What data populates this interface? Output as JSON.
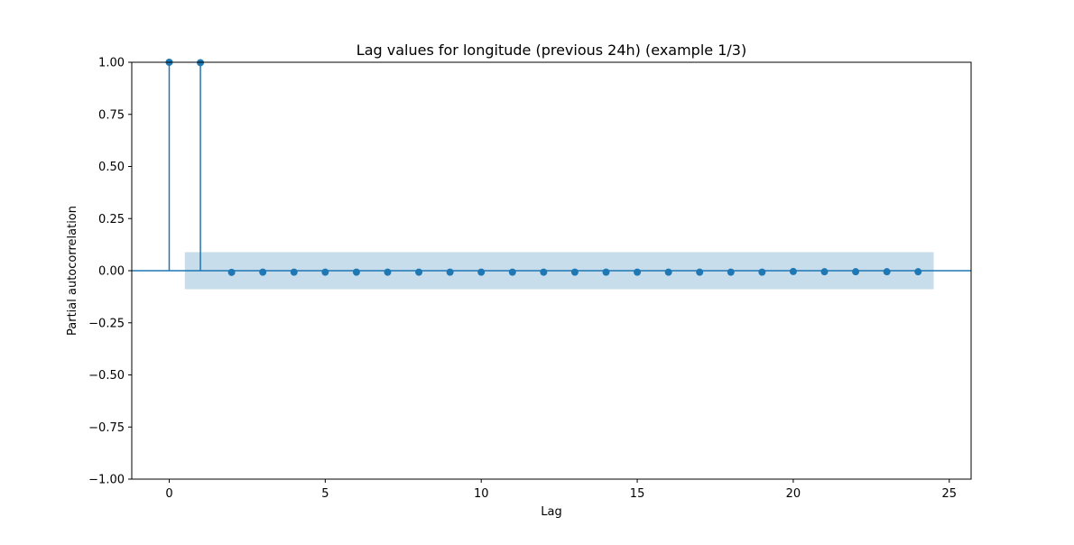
{
  "chart_data": {
    "type": "stem",
    "title": "Lag values for longitude (previous 24h) (example 1/3)",
    "xlabel": "Lag",
    "ylabel": "Partial autocorrelation",
    "xlim": [
      -1.2,
      25.7
    ],
    "ylim": [
      -1.0,
      1.0
    ],
    "xticks": [
      0,
      5,
      10,
      15,
      20,
      25
    ],
    "yticks": [
      -1.0,
      -0.75,
      -0.5,
      -0.25,
      0.0,
      0.25,
      0.5,
      0.75,
      1.0
    ],
    "ytick_labels": [
      "−1.00",
      "−0.75",
      "−0.50",
      "−0.25",
      "0.00",
      "0.25",
      "0.50",
      "0.75",
      "1.00"
    ],
    "xtick_labels": [
      "0",
      "5",
      "10",
      "15",
      "20",
      "25"
    ],
    "x": [
      0,
      1,
      2,
      3,
      4,
      5,
      6,
      7,
      8,
      9,
      10,
      11,
      12,
      13,
      14,
      15,
      16,
      17,
      18,
      19,
      20,
      21,
      22,
      23,
      24
    ],
    "values": [
      1.0,
      0.998,
      -0.008,
      -0.007,
      -0.007,
      -0.007,
      -0.007,
      -0.007,
      -0.007,
      -0.007,
      -0.007,
      -0.007,
      -0.007,
      -0.007,
      -0.007,
      -0.007,
      -0.007,
      -0.007,
      -0.007,
      -0.007,
      -0.004,
      -0.005,
      -0.005,
      -0.005,
      -0.005
    ],
    "confidence_band": {
      "x_start": 0.5,
      "x_end": 24.5,
      "lower": -0.089,
      "upper": 0.089
    },
    "zero_line": true,
    "grid": false,
    "colors": {
      "stem": "#1f77b4",
      "band": "#1f77b4",
      "band_opacity": 0.25,
      "axes": "#000000"
    }
  }
}
